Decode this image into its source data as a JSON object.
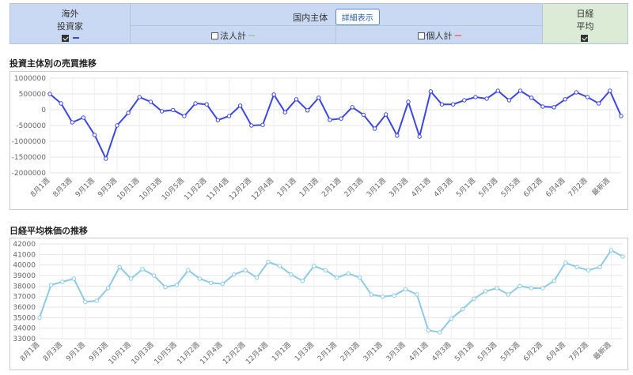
{
  "header": {
    "overseas_label_1": "海外",
    "overseas_label_2": "投資家",
    "domestic_label": "国内主体",
    "detail_button": "詳細表示",
    "corporate_label": "法人計",
    "individual_label": "個人計",
    "nikkei_label_1": "日経",
    "nikkei_label_2": "平均",
    "overseas_checked": true,
    "corporate_checked": false,
    "individual_checked": false,
    "nikkei_checked": true,
    "overseas_color": "#3d46e0",
    "corporate_color": "#9ed69e",
    "individual_color": "#f08080"
  },
  "chart1_title": "投資主体別の売買推移",
  "chart2_title": "日経平均株価の推移",
  "chart_data": [
    {
      "type": "line",
      "title": "投資主体別の売買推移",
      "ylim": [
        -2000000,
        1000000
      ],
      "yticks": [
        1000000,
        500000,
        0,
        -500000,
        -1000000,
        -1500000,
        -2000000
      ],
      "ytick_labels": [
        "1000000",
        "500000",
        "0",
        "-500000",
        "-1000000",
        "-1500000",
        "-2000000"
      ],
      "xtick_labels": [
        "8月1週",
        "8月3週",
        "9月1週",
        "9月3週",
        "10月1週",
        "10月3週",
        "10月5週",
        "11月2週",
        "11月4週",
        "12月2週",
        "12月4週",
        "1月1週",
        "1月3週",
        "2月1週",
        "2月3週",
        "3月1週",
        "3月3週",
        "4月1週",
        "4月3週",
        "5月1週",
        "5月3週",
        "5月5週",
        "6月2週",
        "6月4週",
        "7月2週",
        "最新週"
      ],
      "grid": true,
      "color": "#3d46e0",
      "series": [
        {
          "values": [
            500000,
            200000,
            -400000,
            -250000,
            -800000,
            -1550000,
            -500000,
            -100000,
            400000,
            250000,
            -50000,
            -10000,
            -200000,
            200000,
            170000,
            -330000,
            -200000,
            130000,
            -500000,
            -480000,
            480000,
            -80000,
            330000,
            -20000,
            380000,
            -320000,
            -280000,
            80000,
            -160000,
            -600000,
            -150000,
            -820000,
            250000,
            -850000,
            580000,
            170000,
            170000,
            300000,
            400000,
            350000,
            600000,
            300000,
            600000,
            380000,
            100000,
            80000,
            330000,
            550000,
            400000,
            200000,
            600000,
            -200000
          ]
        }
      ]
    },
    {
      "type": "line",
      "title": "日経平均株価の推移",
      "ylim": [
        33000,
        42000
      ],
      "yticks": [
        42000,
        41000,
        40000,
        39000,
        38000,
        37000,
        36000,
        35000,
        34000,
        33000
      ],
      "ytick_labels": [
        "42000",
        "41000",
        "40000",
        "39000",
        "38000",
        "37000",
        "36000",
        "35000",
        "34000",
        "33000"
      ],
      "xtick_labels": [
        "8月1週",
        "8月3週",
        "9月1週",
        "9月3週",
        "10月1週",
        "10月3週",
        "10月5週",
        "11月2週",
        "11月4週",
        "12月2週",
        "12月4週",
        "1月1週",
        "1月3週",
        "2月1週",
        "2月3週",
        "3月1週",
        "3月3週",
        "4月1週",
        "4月3週",
        "5月1週",
        "5月3週",
        "5月5週",
        "6月2週",
        "6月4週",
        "7月2週",
        "最新週"
      ],
      "grid": true,
      "color": "#8ecae6",
      "series": [
        {
          "values": [
            35000,
            38100,
            38400,
            38700,
            36500,
            36600,
            37800,
            39800,
            38700,
            39600,
            39000,
            37900,
            38100,
            39500,
            38700,
            38300,
            38200,
            39100,
            39500,
            38800,
            40300,
            39900,
            39100,
            38500,
            39900,
            39500,
            38800,
            39200,
            38800,
            37200,
            37000,
            37100,
            37700,
            37200,
            33800,
            33600,
            34900,
            35800,
            36800,
            37500,
            37800,
            37200,
            38000,
            37800,
            37800,
            38500,
            40200,
            39800,
            39500,
            39800,
            41400,
            40800
          ]
        }
      ]
    }
  ]
}
